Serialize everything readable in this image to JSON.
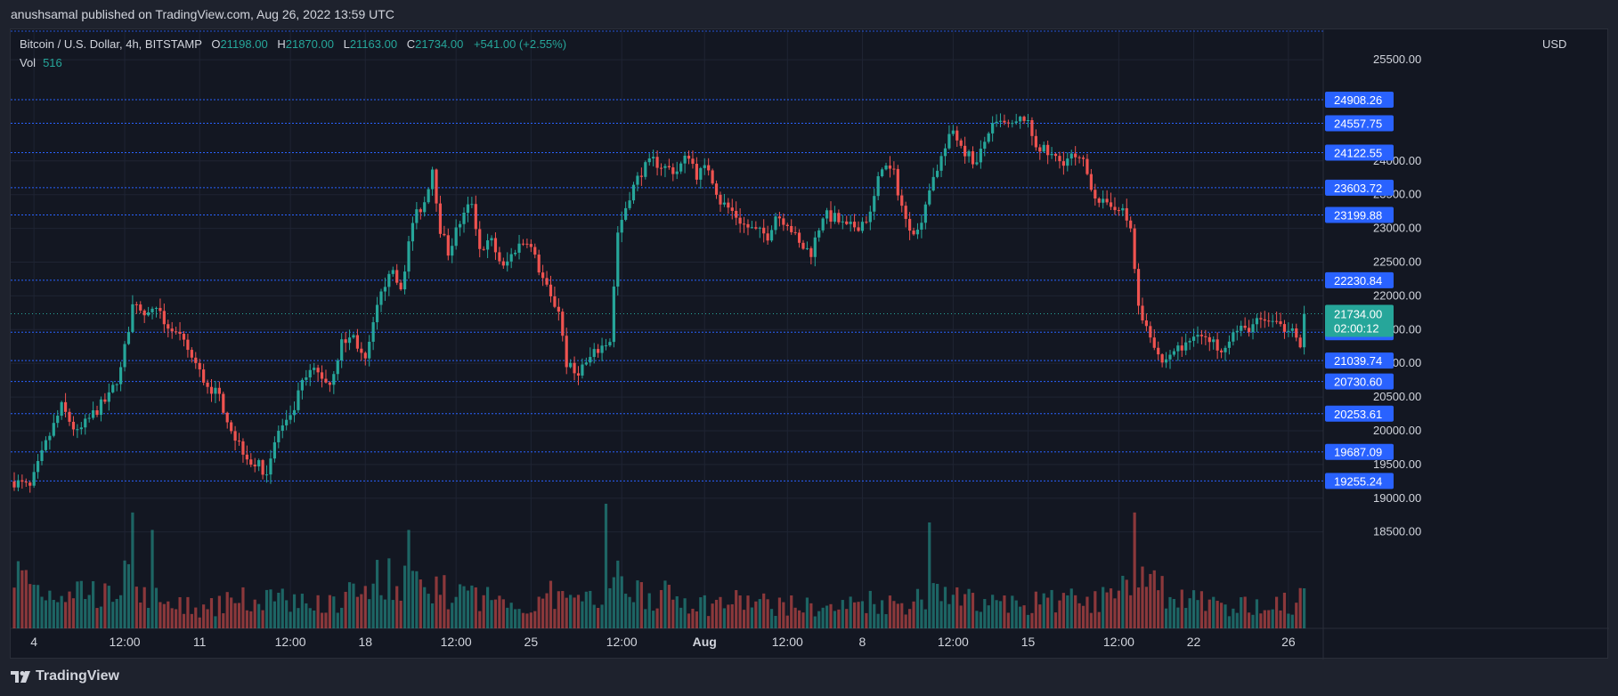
{
  "header": {
    "text": "anushsamal published on TradingView.com, Aug 26, 2022 13:59 UTC"
  },
  "legend": {
    "symbol": "Bitcoin / U.S. Dollar, 4h, BITSTAMP",
    "open_label": "O",
    "open": "21198.00",
    "high_label": "H",
    "high": "21870.00",
    "low_label": "L",
    "low": "21163.00",
    "close_label": "C",
    "close": "21734.00",
    "change": "+541.00 (+2.55%)",
    "vol_label": "Vol",
    "vol": "516"
  },
  "axis": {
    "currency": "USD"
  },
  "footer": {
    "brand": "TradingView"
  },
  "colors": {
    "up": "#26a69a",
    "down": "#ef5350",
    "level": "#2962ff",
    "background": "#131722",
    "text": "#d1d4dc"
  },
  "chart_data": {
    "type": "candlestick",
    "timeframe": "4h",
    "ylim": [
      18100,
      25950
    ],
    "y_ticks": [
      18500,
      19000,
      19500,
      20000,
      20500,
      21000,
      21500,
      22000,
      22500,
      23000,
      23500,
      24000,
      25500
    ],
    "x_ticks": [
      {
        "label": "4",
        "bar": 5
      },
      {
        "label": "12:00",
        "bar": 28
      },
      {
        "label": "11",
        "bar": 47
      },
      {
        "label": "12:00",
        "bar": 70
      },
      {
        "label": "18",
        "bar": 89
      },
      {
        "label": "12:00",
        "bar": 112
      },
      {
        "label": "25",
        "bar": 131
      },
      {
        "label": "12:00",
        "bar": 154
      },
      {
        "label": "Aug",
        "bar": 175
      },
      {
        "label": "12:00",
        "bar": 196
      },
      {
        "label": "8",
        "bar": 215
      },
      {
        "label": "12:00",
        "bar": 238
      },
      {
        "label": "15",
        "bar": 257
      },
      {
        "label": "12:00",
        "bar": 280
      },
      {
        "label": "22",
        "bar": 299
      },
      {
        "label": "26",
        "bar": 323
      }
    ],
    "levels": [
      24908.26,
      24557.75,
      24122.55,
      23603.72,
      23199.88,
      22230.84,
      21460.87,
      21039.74,
      20730.6,
      20253.61,
      19687.09,
      19255.24
    ],
    "current": {
      "price": "21734.00",
      "countdown": "02:00:12"
    },
    "close_path": [
      [
        0,
        19250
      ],
      [
        4,
        19150
      ],
      [
        8,
        19800
      ],
      [
        12,
        20350
      ],
      [
        16,
        19950
      ],
      [
        20,
        20250
      ],
      [
        24,
        20500
      ],
      [
        27,
        20900
      ],
      [
        30,
        21850
      ],
      [
        33,
        21700
      ],
      [
        36,
        21750
      ],
      [
        40,
        21500
      ],
      [
        44,
        21200
      ],
      [
        48,
        20750
      ],
      [
        52,
        20500
      ],
      [
        56,
        19900
      ],
      [
        60,
        19550
      ],
      [
        64,
        19400
      ],
      [
        67,
        20000
      ],
      [
        70,
        20150
      ],
      [
        73,
        20700
      ],
      [
        76,
        20900
      ],
      [
        80,
        20700
      ],
      [
        83,
        21300
      ],
      [
        86,
        21400
      ],
      [
        89,
        21000
      ],
      [
        92,
        21800
      ],
      [
        95,
        22400
      ],
      [
        98,
        22100
      ],
      [
        101,
        23100
      ],
      [
        104,
        23400
      ],
      [
        106,
        23900
      ],
      [
        108,
        23000
      ],
      [
        110,
        22650
      ],
      [
        113,
        23100
      ],
      [
        116,
        23400
      ],
      [
        118,
        22700
      ],
      [
        121,
        22800
      ],
      [
        124,
        22400
      ],
      [
        127,
        22700
      ],
      [
        130,
        22850
      ],
      [
        133,
        22400
      ],
      [
        136,
        21950
      ],
      [
        138,
        21800
      ],
      [
        140,
        21000
      ],
      [
        142,
        20850
      ],
      [
        145,
        21000
      ],
      [
        148,
        21200
      ],
      [
        151,
        21350
      ],
      [
        153,
        22950
      ],
      [
        156,
        23500
      ],
      [
        159,
        23850
      ],
      [
        162,
        24000
      ],
      [
        165,
        23900
      ],
      [
        168,
        23850
      ],
      [
        171,
        24100
      ],
      [
        173,
        23800
      ],
      [
        176,
        23900
      ],
      [
        179,
        23400
      ],
      [
        182,
        23250
      ],
      [
        185,
        23050
      ],
      [
        188,
        22950
      ],
      [
        191,
        22900
      ],
      [
        193,
        23200
      ],
      [
        196,
        23100
      ],
      [
        199,
        22750
      ],
      [
        202,
        22650
      ],
      [
        205,
        23200
      ],
      [
        208,
        23150
      ],
      [
        211,
        23000
      ],
      [
        214,
        23050
      ],
      [
        217,
        23200
      ],
      [
        220,
        23950
      ],
      [
        223,
        23800
      ],
      [
        226,
        23100
      ],
      [
        229,
        22950
      ],
      [
        232,
        23600
      ],
      [
        235,
        24050
      ],
      [
        238,
        24450
      ],
      [
        241,
        24150
      ],
      [
        244,
        23950
      ],
      [
        247,
        24450
      ],
      [
        250,
        24550
      ],
      [
        253,
        24500
      ],
      [
        256,
        24650
      ],
      [
        259,
        24250
      ],
      [
        262,
        24100
      ],
      [
        265,
        24000
      ],
      [
        268,
        24050
      ],
      [
        271,
        23950
      ],
      [
        274,
        23500
      ],
      [
        277,
        23300
      ],
      [
        280,
        23350
      ],
      [
        283,
        23000
      ],
      [
        285,
        21800
      ],
      [
        288,
        21450
      ],
      [
        291,
        21000
      ],
      [
        294,
        21200
      ],
      [
        297,
        21250
      ],
      [
        300,
        21500
      ],
      [
        303,
        21300
      ],
      [
        306,
        21250
      ],
      [
        309,
        21450
      ],
      [
        312,
        21500
      ],
      [
        315,
        21600
      ],
      [
        318,
        21650
      ],
      [
        321,
        21500
      ],
      [
        324,
        21600
      ],
      [
        326,
        21200
      ],
      [
        327,
        21734
      ]
    ],
    "volume_path": [
      [
        0,
        0.52
      ],
      [
        8,
        0.32
      ],
      [
        16,
        0.38
      ],
      [
        24,
        0.28
      ],
      [
        28,
        0.45
      ],
      [
        32,
        0.33
      ],
      [
        40,
        0.22
      ],
      [
        48,
        0.18
      ],
      [
        56,
        0.25
      ],
      [
        64,
        0.28
      ],
      [
        72,
        0.25
      ],
      [
        80,
        0.22
      ],
      [
        88,
        0.42
      ],
      [
        96,
        0.48
      ],
      [
        104,
        0.38
      ],
      [
        112,
        0.3
      ],
      [
        120,
        0.28
      ],
      [
        128,
        0.2
      ],
      [
        136,
        0.3
      ],
      [
        144,
        0.22
      ],
      [
        152,
        0.45
      ],
      [
        160,
        0.32
      ],
      [
        168,
        0.28
      ],
      [
        176,
        0.22
      ],
      [
        184,
        0.25
      ],
      [
        192,
        0.22
      ],
      [
        200,
        0.2
      ],
      [
        208,
        0.18
      ],
      [
        216,
        0.26
      ],
      [
        224,
        0.22
      ],
      [
        232,
        0.3
      ],
      [
        240,
        0.28
      ],
      [
        248,
        0.22
      ],
      [
        256,
        0.22
      ],
      [
        264,
        0.26
      ],
      [
        272,
        0.25
      ],
      [
        280,
        0.28
      ],
      [
        284,
        0.65
      ],
      [
        288,
        0.4
      ],
      [
        296,
        0.25
      ],
      [
        304,
        0.22
      ],
      [
        312,
        0.2
      ],
      [
        320,
        0.22
      ],
      [
        327,
        0.26
      ]
    ],
    "volume_spikes": [
      [
        30,
        0.93
      ],
      [
        35,
        0.79
      ],
      [
        100,
        0.79
      ],
      [
        150,
        1.0
      ],
      [
        232,
        0.85
      ],
      [
        284,
        0.93
      ]
    ]
  }
}
